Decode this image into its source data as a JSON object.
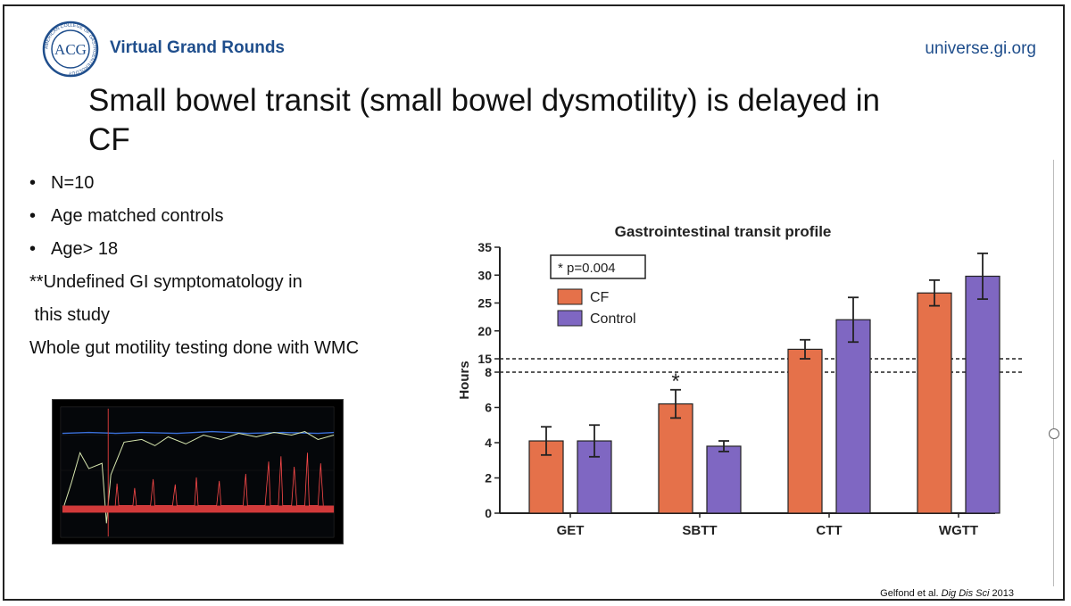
{
  "header": {
    "brand": "Virtual Grand Rounds",
    "site": "universe.gi.org",
    "logo_text": "ACG",
    "logo_ring_text": "AMERICAN COLLEGE OF GASTROENTEROLOGY"
  },
  "slide": {
    "title_line1": "Small bowel transit (small bowel dysmotility) is delayed in",
    "title_line2": "CF",
    "bullets": [
      "N=10",
      "Age matched controls",
      "Age> 18"
    ],
    "bullet_symbol": "•",
    "notes": [
      "**Undefined GI symptomatology in",
      " this study",
      "Whole gut motility testing done with WMC"
    ]
  },
  "citation": {
    "authors": "Gelfond et al.",
    "journal": "Dig Dis Sci",
    "year": "2013"
  },
  "colors": {
    "cf": "#E5714A",
    "control": "#7F67C2",
    "brand": "#1f4e8c"
  },
  "chart_data": {
    "type": "bar",
    "title": "Gastrointestinal transit profile",
    "ylabel": "Hours",
    "xlabel": "",
    "categories": [
      "GET",
      "SBTT",
      "CTT",
      "WGTT"
    ],
    "series": [
      {
        "name": "CF",
        "values": [
          4.1,
          6.2,
          16.7,
          26.8
        ],
        "errors": [
          0.8,
          0.8,
          1.7,
          2.3
        ]
      },
      {
        "name": "Control",
        "values": [
          4.1,
          3.8,
          22.0,
          29.8
        ],
        "errors": [
          0.9,
          0.3,
          4.0,
          4.1
        ]
      }
    ],
    "axis_break": true,
    "lower_ylim": [
      0,
      8
    ],
    "lower_ticks": [
      0,
      2,
      4,
      6,
      8
    ],
    "upper_ylim": [
      15,
      35
    ],
    "upper_ticks": [
      15,
      20,
      25,
      30,
      35
    ],
    "legend_box_text": "* p=0.004",
    "significance_marker": {
      "category": "SBTT",
      "series": "CF",
      "text": "*"
    },
    "legend_position": "top-left"
  }
}
